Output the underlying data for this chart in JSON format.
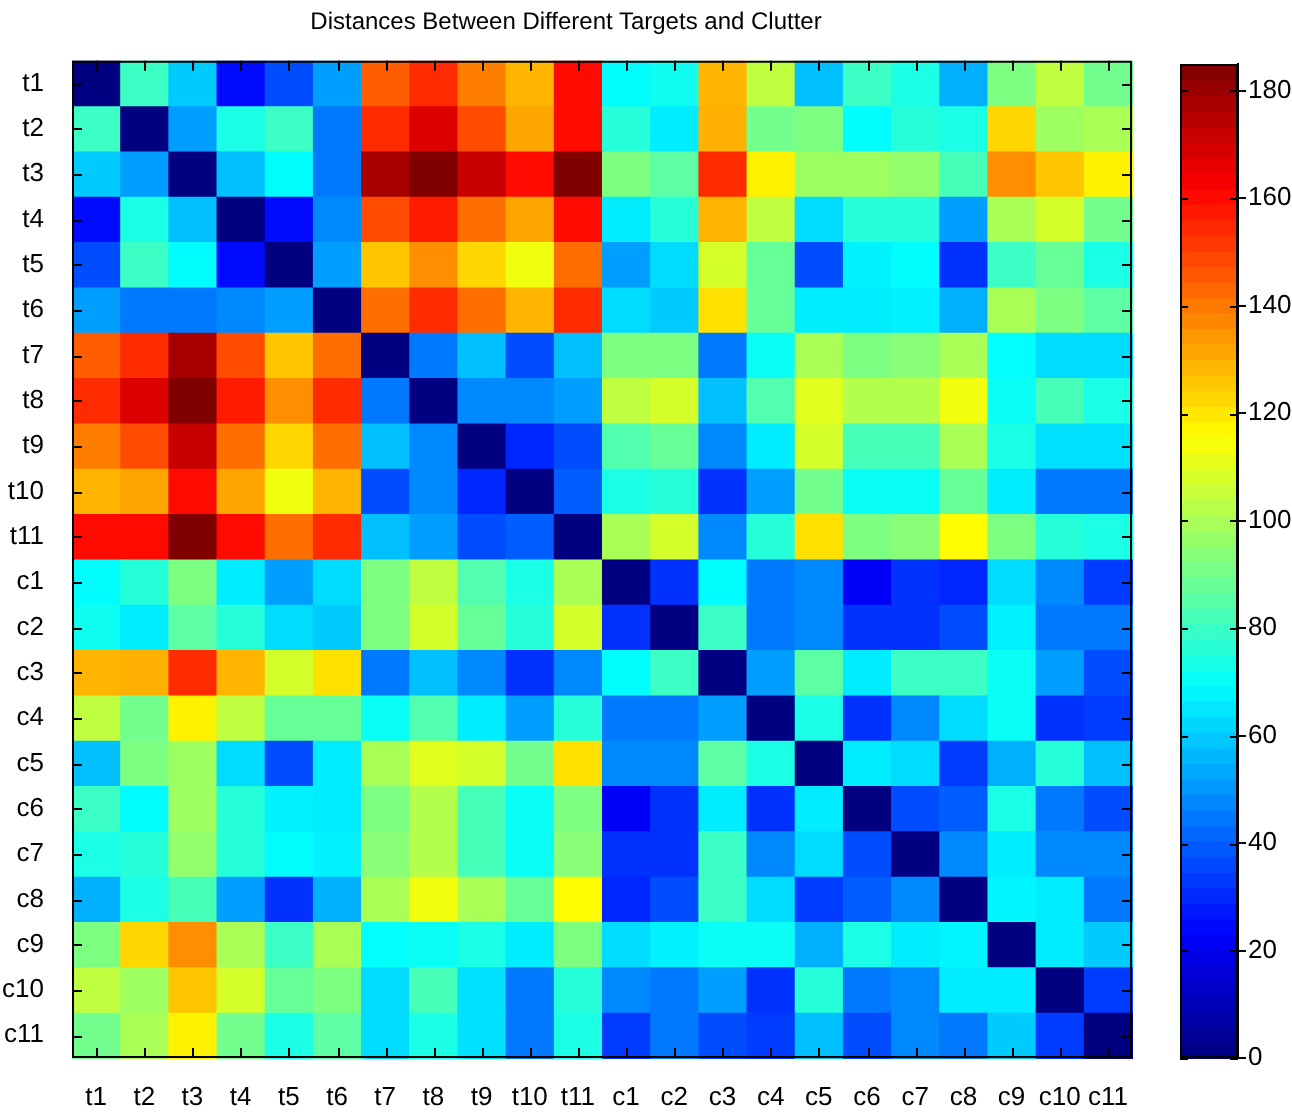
{
  "chart_data": {
    "type": "heatmap",
    "title": "Distances Between Different Targets and Clutter",
    "categories": [
      "t1",
      "t2",
      "t3",
      "t4",
      "t5",
      "t6",
      "t7",
      "t8",
      "t9",
      "t10",
      "t11",
      "c1",
      "c2",
      "c3",
      "c4",
      "c5",
      "c6",
      "c7",
      "c8",
      "c9",
      "c10",
      "c11"
    ],
    "y_categories": [
      "t1",
      "t2",
      "t3",
      "t4",
      "t5",
      "t6",
      "t7",
      "t8",
      "t9",
      "t10",
      "t11",
      "c1",
      "c2",
      "c3",
      "c4",
      "c5",
      "c6",
      "c7",
      "c8",
      "c9",
      "c10",
      "c11"
    ],
    "cells": [
      [
        0,
        80,
        60,
        25,
        37,
        52,
        145,
        154,
        139,
        129,
        160,
        69,
        72,
        129,
        104,
        58,
        80,
        74,
        55,
        92,
        104,
        90
      ],
      [
        80,
        0,
        52,
        74,
        80,
        45,
        154,
        168,
        148,
        132,
        160,
        76,
        66,
        130,
        90,
        92,
        69,
        76,
        74,
        123,
        98,
        100
      ],
      [
        60,
        52,
        0,
        58,
        69,
        45,
        178,
        185,
        172,
        160,
        185,
        92,
        86,
        154,
        118,
        98,
        98,
        96,
        82,
        136,
        126,
        118
      ],
      [
        25,
        74,
        58,
        0,
        25,
        48,
        148,
        157,
        142,
        132,
        160,
        66,
        76,
        129,
        104,
        63,
        76,
        76,
        52,
        100,
        108,
        90
      ],
      [
        37,
        80,
        69,
        25,
        0,
        52,
        126,
        136,
        123,
        113,
        142,
        52,
        63,
        108,
        88,
        37,
        67,
        69,
        32,
        80,
        88,
        74
      ],
      [
        52,
        45,
        45,
        48,
        52,
        0,
        142,
        154,
        142,
        129,
        154,
        63,
        60,
        121,
        88,
        66,
        66,
        67,
        55,
        100,
        92,
        86
      ],
      [
        145,
        154,
        178,
        148,
        126,
        142,
        0,
        45,
        58,
        37,
        58,
        92,
        92,
        45,
        71,
        100,
        92,
        94,
        100,
        70,
        63,
        63
      ],
      [
        154,
        168,
        185,
        157,
        136,
        154,
        45,
        0,
        48,
        48,
        52,
        104,
        108,
        58,
        84,
        110,
        102,
        102,
        113,
        71,
        82,
        74
      ],
      [
        139,
        148,
        172,
        142,
        123,
        142,
        58,
        48,
        0,
        30,
        37,
        84,
        88,
        48,
        66,
        108,
        82,
        82,
        100,
        74,
        64,
        64
      ],
      [
        129,
        132,
        160,
        132,
        113,
        129,
        37,
        48,
        30,
        0,
        40,
        74,
        76,
        32,
        52,
        90,
        71,
        71,
        88,
        66,
        45,
        45
      ],
      [
        160,
        160,
        185,
        160,
        142,
        154,
        58,
        52,
        37,
        40,
        0,
        100,
        108,
        48,
        76,
        121,
        92,
        94,
        116,
        92,
        76,
        74
      ],
      [
        69,
        76,
        92,
        66,
        52,
        63,
        92,
        104,
        84,
        74,
        100,
        0,
        32,
        69,
        45,
        48,
        22,
        32,
        30,
        63,
        48,
        34
      ],
      [
        72,
        66,
        86,
        76,
        63,
        60,
        92,
        108,
        88,
        76,
        108,
        32,
        0,
        80,
        45,
        48,
        32,
        32,
        37,
        67,
        45,
        45
      ],
      [
        129,
        130,
        154,
        129,
        108,
        121,
        45,
        58,
        48,
        32,
        48,
        69,
        80,
        0,
        52,
        86,
        66,
        80,
        80,
        71,
        52,
        37
      ],
      [
        104,
        90,
        118,
        104,
        88,
        88,
        71,
        84,
        66,
        52,
        76,
        45,
        45,
        52,
        0,
        74,
        32,
        48,
        63,
        71,
        32,
        34
      ],
      [
        58,
        92,
        98,
        63,
        37,
        66,
        100,
        110,
        108,
        90,
        121,
        48,
        48,
        86,
        74,
        0,
        66,
        63,
        34,
        55,
        76,
        58
      ],
      [
        80,
        69,
        98,
        76,
        67,
        66,
        92,
        102,
        82,
        71,
        92,
        22,
        32,
        66,
        32,
        66,
        0,
        37,
        40,
        74,
        45,
        37
      ],
      [
        74,
        76,
        96,
        76,
        69,
        67,
        94,
        102,
        82,
        71,
        94,
        32,
        32,
        80,
        48,
        63,
        37,
        0,
        48,
        66,
        48,
        48
      ],
      [
        55,
        74,
        82,
        52,
        32,
        55,
        100,
        113,
        100,
        88,
        116,
        30,
        37,
        80,
        63,
        34,
        40,
        48,
        0,
        68,
        66,
        45
      ],
      [
        92,
        123,
        136,
        100,
        80,
        100,
        70,
        71,
        74,
        66,
        92,
        63,
        67,
        71,
        71,
        55,
        74,
        66,
        68,
        0,
        66,
        60
      ],
      [
        104,
        98,
        126,
        108,
        88,
        92,
        63,
        82,
        64,
        45,
        76,
        48,
        45,
        52,
        32,
        76,
        45,
        48,
        66,
        66,
        0,
        34
      ],
      [
        90,
        100,
        118,
        90,
        74,
        86,
        63,
        74,
        64,
        45,
        74,
        34,
        45,
        37,
        34,
        58,
        37,
        48,
        45,
        60,
        34,
        0
      ]
    ],
    "clim": [
      0,
      185
    ],
    "cticks": [
      0,
      20,
      40,
      60,
      80,
      100,
      120,
      140,
      160,
      180
    ]
  }
}
